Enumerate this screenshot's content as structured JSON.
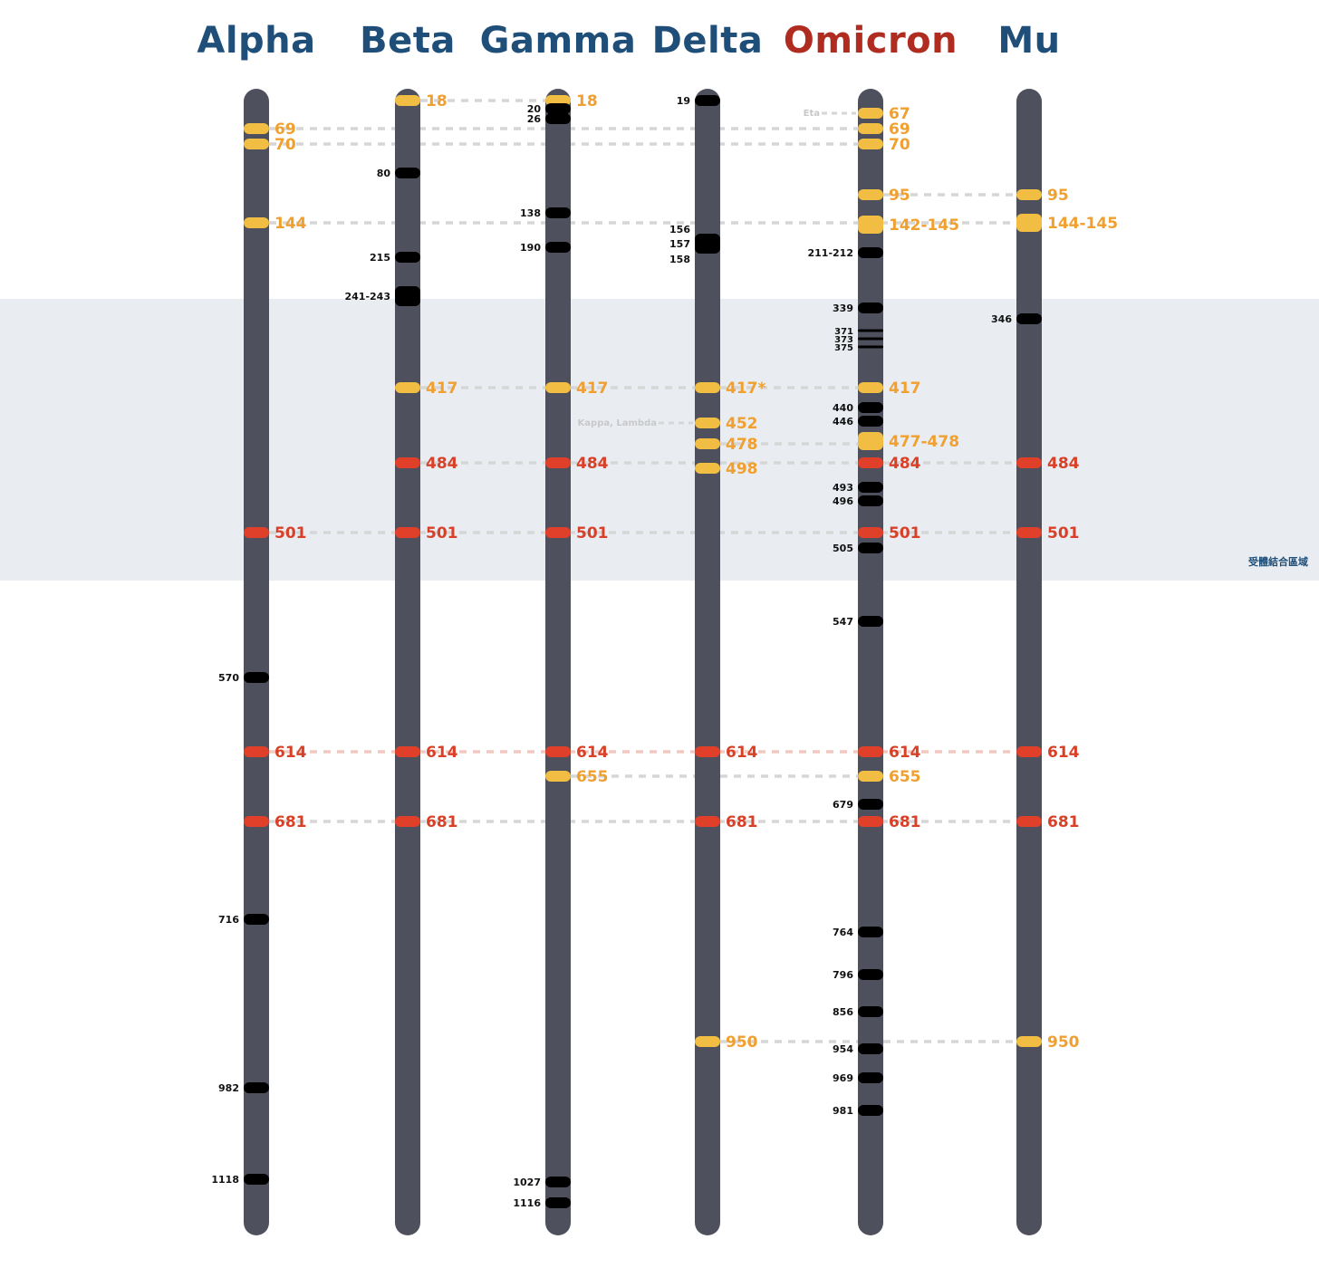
{
  "region_label": "受體結合區域",
  "colors": {
    "bar": "#4f505e",
    "yellow": "#f1bd42",
    "yellow_text": "#f0a030",
    "red": "#e0402a",
    "red_text": "#d84028",
    "black": "#000000",
    "title_blue": "#1f4e79",
    "title_red": "#b02b20",
    "dash": "#d6d6d6",
    "dash_red": "#f2c9c0",
    "region": "#e9edf2",
    "faint": "#c8c8c8"
  },
  "variants": [
    {
      "name": "Alpha",
      "color": "blue",
      "mutations": [
        {
          "label": "69",
          "pos": 69,
          "kind": "yellow"
        },
        {
          "label": "70",
          "pos": 70,
          "kind": "yellow"
        },
        {
          "label": "144",
          "pos": 144,
          "kind": "yellow"
        },
        {
          "label": "501",
          "pos": 501,
          "kind": "red"
        },
        {
          "label": "570",
          "pos": 570,
          "kind": "black"
        },
        {
          "label": "614",
          "pos": 614,
          "kind": "red"
        },
        {
          "label": "681",
          "pos": 681,
          "kind": "red"
        },
        {
          "label": "716",
          "pos": 716,
          "kind": "black"
        },
        {
          "label": "982",
          "pos": 982,
          "kind": "black"
        },
        {
          "label": "1118",
          "pos": 1118,
          "kind": "black"
        }
      ]
    },
    {
      "name": "Beta",
      "color": "blue",
      "mutations": [
        {
          "label": "18",
          "pos": 18,
          "kind": "yellow"
        },
        {
          "label": "80",
          "pos": 80,
          "kind": "black"
        },
        {
          "label": "215",
          "pos": 215,
          "kind": "black"
        },
        {
          "label": "241-243",
          "pos": 242,
          "kind": "black",
          "tall": true
        },
        {
          "label": "417",
          "pos": 417,
          "kind": "yellow"
        },
        {
          "label": "484",
          "pos": 484,
          "kind": "red"
        },
        {
          "label": "501",
          "pos": 501,
          "kind": "red"
        },
        {
          "label": "614",
          "pos": 614,
          "kind": "red"
        },
        {
          "label": "681",
          "pos": 681,
          "kind": "red"
        }
      ]
    },
    {
      "name": "Gamma",
      "color": "blue",
      "mutations": [
        {
          "label": "18",
          "pos": 18,
          "kind": "yellow"
        },
        {
          "label": "20",
          "pos": 20,
          "kind": "black"
        },
        {
          "label": "26",
          "pos": 26,
          "kind": "black"
        },
        {
          "label": "138",
          "pos": 138,
          "kind": "black"
        },
        {
          "label": "190",
          "pos": 190,
          "kind": "black"
        },
        {
          "label": "417",
          "pos": 417,
          "kind": "yellow"
        },
        {
          "label": "484",
          "pos": 484,
          "kind": "red"
        },
        {
          "label": "501",
          "pos": 501,
          "kind": "red"
        },
        {
          "label": "614",
          "pos": 614,
          "kind": "red"
        },
        {
          "label": "655",
          "pos": 655,
          "kind": "yellow"
        },
        {
          "label": "1027",
          "pos": 1027,
          "kind": "black"
        },
        {
          "label": "1116",
          "pos": 1116,
          "kind": "black"
        }
      ]
    },
    {
      "name": "Delta",
      "color": "blue",
      "mutations": [
        {
          "label": "19",
          "pos": 19,
          "kind": "black"
        },
        {
          "label": "156",
          "pos": 156,
          "kind": "black"
        },
        {
          "label": "157",
          "pos": 157,
          "kind": "black"
        },
        {
          "label": "158",
          "pos": 158,
          "kind": "black"
        },
        {
          "label": "417*",
          "pos": 417,
          "kind": "yellow"
        },
        {
          "label": "452",
          "pos": 452,
          "kind": "yellow"
        },
        {
          "label": "478",
          "pos": 478,
          "kind": "yellow"
        },
        {
          "label": "498",
          "pos": 498,
          "kind": "yellow"
        },
        {
          "label": "614",
          "pos": 614,
          "kind": "red"
        },
        {
          "label": "681",
          "pos": 681,
          "kind": "red"
        },
        {
          "label": "950",
          "pos": 950,
          "kind": "yellow"
        }
      ],
      "side_notes": [
        {
          "text": "Kappa, Lambda",
          "at": "452"
        }
      ]
    },
    {
      "name": "Omicron",
      "color": "red",
      "mutations": [
        {
          "label": "67",
          "pos": 67,
          "kind": "yellow"
        },
        {
          "label": "69",
          "pos": 69,
          "kind": "yellow"
        },
        {
          "label": "70",
          "pos": 70,
          "kind": "yellow"
        },
        {
          "label": "95",
          "pos": 95,
          "kind": "yellow"
        },
        {
          "label": "142-145",
          "pos": 143,
          "kind": "yellow",
          "tall": true
        },
        {
          "label": "211-212",
          "pos": 211,
          "kind": "black"
        },
        {
          "label": "339",
          "pos": 339,
          "kind": "black"
        },
        {
          "label": "371",
          "pos": 371,
          "kind": "black",
          "thin": true
        },
        {
          "label": "373",
          "pos": 373,
          "kind": "black",
          "thin": true
        },
        {
          "label": "375",
          "pos": 375,
          "kind": "black",
          "thin": true
        },
        {
          "label": "417",
          "pos": 417,
          "kind": "yellow"
        },
        {
          "label": "440",
          "pos": 440,
          "kind": "black"
        },
        {
          "label": "446",
          "pos": 446,
          "kind": "black"
        },
        {
          "label": "477-478",
          "pos": 477,
          "kind": "yellow",
          "tall": true
        },
        {
          "label": "484",
          "pos": 484,
          "kind": "red"
        },
        {
          "label": "493",
          "pos": 493,
          "kind": "black"
        },
        {
          "label": "496",
          "pos": 496,
          "kind": "black"
        },
        {
          "label": "501",
          "pos": 501,
          "kind": "red"
        },
        {
          "label": "505",
          "pos": 505,
          "kind": "black"
        },
        {
          "label": "547",
          "pos": 547,
          "kind": "black"
        },
        {
          "label": "614",
          "pos": 614,
          "kind": "red"
        },
        {
          "label": "655",
          "pos": 655,
          "kind": "yellow"
        },
        {
          "label": "679",
          "pos": 679,
          "kind": "black"
        },
        {
          "label": "681",
          "pos": 681,
          "kind": "red"
        },
        {
          "label": "764",
          "pos": 764,
          "kind": "black"
        },
        {
          "label": "796",
          "pos": 796,
          "kind": "black"
        },
        {
          "label": "856",
          "pos": 856,
          "kind": "black"
        },
        {
          "label": "954",
          "pos": 954,
          "kind": "black"
        },
        {
          "label": "969",
          "pos": 969,
          "kind": "black"
        },
        {
          "label": "981",
          "pos": 981,
          "kind": "black"
        }
      ],
      "side_notes": [
        {
          "text": "Eta",
          "at": "67"
        }
      ]
    },
    {
      "name": "Mu",
      "color": "blue",
      "mutations": [
        {
          "label": "95",
          "pos": 95,
          "kind": "yellow"
        },
        {
          "label": "144-145",
          "pos": 144,
          "kind": "yellow",
          "tall": true
        },
        {
          "label": "346",
          "pos": 346,
          "kind": "black"
        },
        {
          "label": "484",
          "pos": 484,
          "kind": "red"
        },
        {
          "label": "501",
          "pos": 501,
          "kind": "red"
        },
        {
          "label": "614",
          "pos": 614,
          "kind": "red"
        },
        {
          "label": "681",
          "pos": 681,
          "kind": "red"
        },
        {
          "label": "950",
          "pos": 950,
          "kind": "yellow"
        }
      ]
    }
  ],
  "shared_links": [
    {
      "label": "18",
      "from": "Beta",
      "to": "Gamma"
    },
    {
      "label": "69",
      "from": "Alpha",
      "to": "Omicron"
    },
    {
      "label": "70",
      "from": "Alpha",
      "to": "Omicron"
    },
    {
      "label": "95",
      "from": "Omicron",
      "to": "Mu"
    },
    {
      "label": "144",
      "from": "Alpha",
      "to": "Mu"
    },
    {
      "label": "417",
      "from": "Beta",
      "to": "Omicron"
    },
    {
      "label": "478",
      "from": "Delta",
      "to": "Omicron"
    },
    {
      "label": "484",
      "from": "Beta",
      "to": "Mu"
    },
    {
      "label": "501",
      "from": "Alpha",
      "to": "Mu"
    },
    {
      "label": "614",
      "from": "Alpha",
      "to": "Mu",
      "red": true
    },
    {
      "label": "655",
      "from": "Gamma",
      "to": "Omicron"
    },
    {
      "label": "681",
      "from": "Alpha",
      "to": "Mu"
    },
    {
      "label": "950",
      "from": "Delta",
      "to": "Mu"
    }
  ]
}
